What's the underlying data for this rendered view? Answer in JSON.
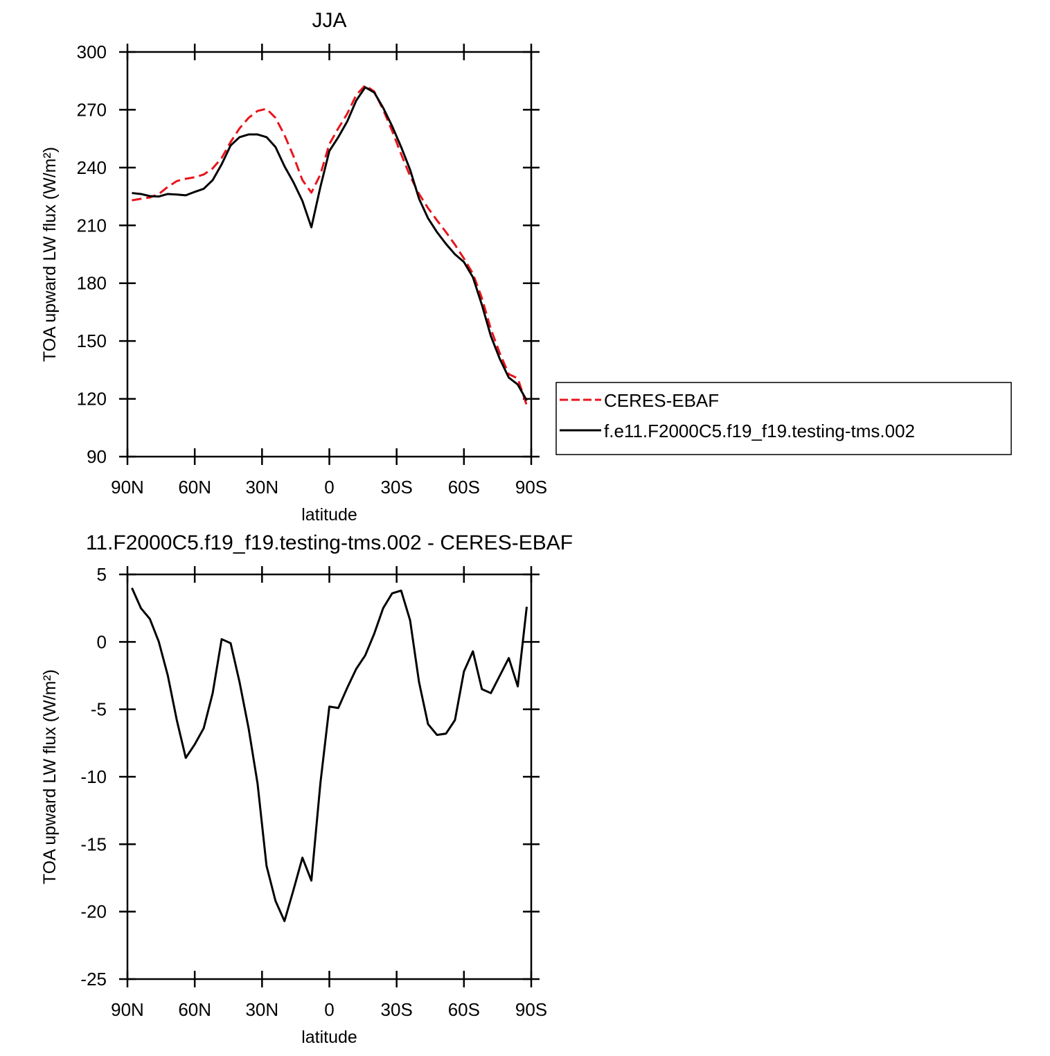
{
  "chart_data": [
    {
      "type": "line",
      "title": "JJA",
      "xlabel": "latitude",
      "ylabel": "TOA upward LW flux (W/m²)",
      "x": [
        88,
        84,
        80,
        76,
        72,
        68,
        64,
        60,
        56,
        52,
        48,
        44,
        40,
        36,
        32,
        28,
        24,
        20,
        16,
        12,
        8,
        4,
        0,
        -4,
        -8,
        -12,
        -16,
        -20,
        -24,
        -28,
        -32,
        -36,
        -40,
        -44,
        -48,
        -52,
        -56,
        -60,
        -64,
        -68,
        -72,
        -76,
        -80,
        -84,
        -88
      ],
      "series": [
        {
          "name": "CERES-EBAF",
          "color": "#e8141b",
          "linestyle": "dashed",
          "values": [
            223,
            223.8,
            224.5,
            226.3,
            230,
            233,
            234.2,
            235,
            236.4,
            239.6,
            245,
            253.3,
            260.4,
            265.8,
            269.4,
            270.5,
            265.8,
            256.9,
            246,
            233.5,
            227,
            236.4,
            252.2,
            260.4,
            268,
            277.7,
            282.7,
            279.5,
            270,
            259,
            247,
            235.6,
            226.3,
            219,
            212.6,
            206.5,
            200,
            192.8,
            185,
            172.3,
            156.2,
            143.6,
            132.8,
            130.6,
            116.6
          ]
        },
        {
          "name": "f.e11.F2000C5.f19_f19.testing-tms.002",
          "color": "#000000",
          "linestyle": "solid",
          "values": [
            226.8,
            226.3,
            225.2,
            225,
            226.3,
            226,
            225.6,
            227.4,
            229,
            233.5,
            241.7,
            251.5,
            255.8,
            257.2,
            257.2,
            255.8,
            250.7,
            240.7,
            232.4,
            222.7,
            209,
            229.9,
            248.6,
            255.8,
            264,
            274.8,
            281.7,
            279,
            271,
            261.5,
            250.7,
            238.9,
            223.8,
            213.7,
            206.5,
            200.4,
            195,
            191,
            183.1,
            168.8,
            152.6,
            140.7,
            131,
            127.4,
            119.1
          ]
        }
      ],
      "xlim": [
        90,
        -90
      ],
      "xticks": [
        {
          "value": 90,
          "label": "90N"
        },
        {
          "value": 60,
          "label": "60N"
        },
        {
          "value": 30,
          "label": "30N"
        },
        0,
        {
          "value": -30,
          "label": "30S"
        },
        {
          "value": -60,
          "label": "60S"
        },
        {
          "value": -90,
          "label": "90S"
        }
      ],
      "ylim": [
        90,
        300
      ],
      "yticks": [
        90,
        120,
        150,
        180,
        210,
        240,
        270,
        300
      ],
      "legend": "outside-right"
    },
    {
      "type": "line",
      "title": "11.F2000C5.f19_f19.testing-tms.002 - CERES-EBAF",
      "xlabel": "latitude",
      "ylabel": "TOA upward LW flux (W/m²)",
      "x": [
        88,
        84,
        80,
        76,
        72,
        68,
        64,
        60,
        56,
        52,
        48,
        44,
        40,
        36,
        32,
        28,
        24,
        20,
        16,
        12,
        8,
        4,
        0,
        -4,
        -8,
        -12,
        -16,
        -20,
        -24,
        -28,
        -32,
        -36,
        -40,
        -44,
        -48,
        -52,
        -56,
        -60,
        -64,
        -68,
        -72,
        -76,
        -80,
        -84,
        -88
      ],
      "series": [
        {
          "color": "#000000",
          "linestyle": "solid",
          "values": [
            4.0,
            2.5,
            1.7,
            0.0,
            -2.5,
            -5.8,
            -8.6,
            -7.6,
            -6.4,
            -3.8,
            0.2,
            -0.1,
            -3.0,
            -6.4,
            -10.5,
            -16.6,
            -19.2,
            -20.7,
            -18.4,
            -16.0,
            -17.7,
            -10.5,
            -4.8,
            -4.9,
            -3.4,
            -2.0,
            -1.0,
            0.6,
            2.5,
            3.6,
            3.8,
            1.6,
            -3.0,
            -6.1,
            -6.9,
            -6.8,
            -5.8,
            -2.2,
            -0.7,
            -3.5,
            -3.8,
            -2.5,
            -1.2,
            -3.3,
            2.6
          ]
        }
      ],
      "xlim": [
        90,
        -90
      ],
      "xticks": [
        {
          "value": 90,
          "label": "90N"
        },
        {
          "value": 60,
          "label": "60N"
        },
        {
          "value": 30,
          "label": "30N"
        },
        0,
        {
          "value": -30,
          "label": "30S"
        },
        {
          "value": -60,
          "label": "60S"
        },
        {
          "value": -90,
          "label": "90S"
        }
      ],
      "ylim": [
        -25,
        5
      ],
      "yticks": [
        -25,
        -20,
        -15,
        -10,
        -5,
        0,
        5
      ]
    }
  ]
}
